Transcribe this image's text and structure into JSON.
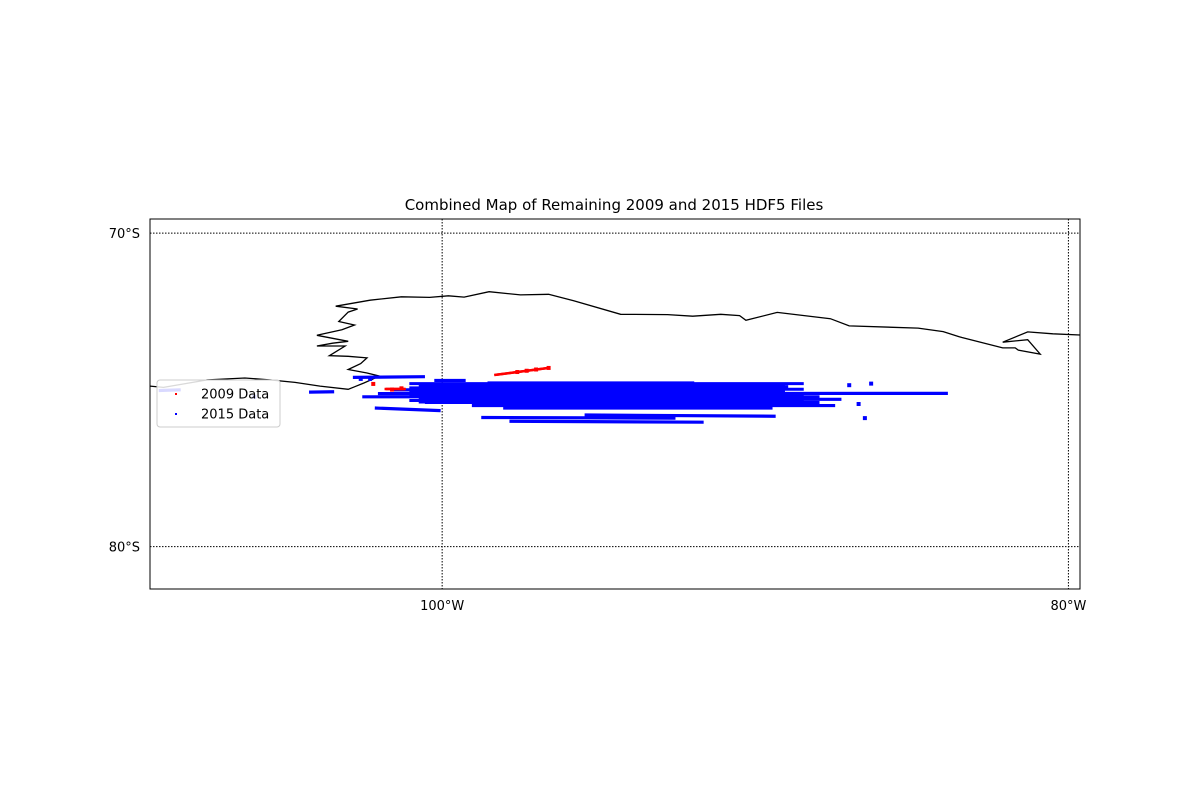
{
  "chart_data": {
    "type": "scatter",
    "title": "Combined Map of Remaining 2009 and 2015 HDF5 Files",
    "projection": "map",
    "xlim": [
      -109.33,
      -79.63
    ],
    "ylim": [
      -81.35,
      -69.55
    ],
    "grid": true,
    "x_ticks": [
      {
        "value": -100,
        "label": "100°W"
      },
      {
        "value": -80,
        "label": "80°W"
      }
    ],
    "y_ticks": [
      {
        "value": -70,
        "label": "70°S"
      },
      {
        "value": -80,
        "label": "80°S"
      }
    ],
    "legend_position": "left",
    "series": [
      {
        "name": "2009 Data",
        "color": "#ff0000",
        "points": [
          {
            "lon": -102.2,
            "lat": -74.81
          },
          {
            "lon": -101.3,
            "lat": -74.95
          },
          {
            "lon": -101.6,
            "lat": -74.99
          },
          {
            "lon": -97.6,
            "lat": -74.43
          },
          {
            "lon": -97.3,
            "lat": -74.39
          },
          {
            "lon": -97.0,
            "lat": -74.35
          },
          {
            "lon": -96.6,
            "lat": -74.3
          }
        ],
        "tracks": [
          {
            "from": [
              -98.3,
              -74.52
            ],
            "to": [
              -96.6,
              -74.3
            ]
          },
          {
            "from": [
              -101.8,
              -74.97
            ],
            "to": [
              -101.2,
              -74.97
            ]
          }
        ]
      },
      {
        "name": "2015 Data",
        "color": "#0000ff",
        "tracks": [
          {
            "from": [
              -102.0,
              -75.12
            ],
            "to": [
              -83.9,
              -75.11
            ]
          },
          {
            "from": [
              -102.5,
              -75.22
            ],
            "to": [
              -88.0,
              -75.22
            ]
          },
          {
            "from": [
              -101.5,
              -75.0
            ],
            "to": [
              -89.5,
              -75.0
            ]
          },
          {
            "from": [
              -100.6,
              -74.9
            ],
            "to": [
              -89.0,
              -74.9
            ]
          },
          {
            "from": [
              -98.5,
              -74.78
            ],
            "to": [
              -92.0,
              -74.78
            ]
          },
          {
            "from": [
              -99.7,
              -75.3
            ],
            "to": [
              -87.3,
              -75.3
            ]
          },
          {
            "from": [
              -100.5,
              -75.4
            ],
            "to": [
              -88.0,
              -75.4
            ]
          },
          {
            "from": [
              -99.0,
              -75.5
            ],
            "to": [
              -87.5,
              -75.5
            ]
          },
          {
            "from": [
              -98.0,
              -75.58
            ],
            "to": [
              -89.5,
              -75.58
            ]
          },
          {
            "from": [
              -102.1,
              -75.58
            ],
            "to": [
              -100.1,
              -75.66
            ]
          },
          {
            "from": [
              -98.7,
              -75.88
            ],
            "to": [
              -92.6,
              -75.9
            ]
          },
          {
            "from": [
              -97.8,
              -76.0
            ],
            "to": [
              -91.7,
              -76.03
            ]
          },
          {
            "from": [
              -95.4,
              -75.8
            ],
            "to": [
              -89.4,
              -75.84
            ]
          },
          {
            "from": [
              -104.2,
              -75.07
            ],
            "to": [
              -103.5,
              -75.06
            ]
          },
          {
            "from": [
              -109.0,
              -75.02
            ],
            "to": [
              -108.4,
              -75.0
            ]
          },
          {
            "from": [
              -102.8,
              -74.6
            ],
            "to": [
              -100.6,
              -74.58
            ]
          },
          {
            "from": [
              -100.2,
              -74.7
            ],
            "to": [
              -99.3,
              -74.7
            ]
          }
        ],
        "points": [
          {
            "lon": -102.6,
            "lat": -74.65
          },
          {
            "lon": -102.3,
            "lat": -74.65
          },
          {
            "lon": -106.0,
            "lat": -75.22
          },
          {
            "lon": -87.0,
            "lat": -74.85
          },
          {
            "lon": -86.3,
            "lat": -74.8
          },
          {
            "lon": -86.7,
            "lat": -75.45
          },
          {
            "lon": -86.5,
            "lat": -75.9
          }
        ]
      }
    ],
    "coastline": [
      [
        -109.33,
        -74.88
      ],
      [
        -108.9,
        -74.92
      ],
      [
        -108.2,
        -74.8
      ],
      [
        -107.5,
        -74.68
      ],
      [
        -106.3,
        -74.62
      ],
      [
        -105.5,
        -74.68
      ],
      [
        -104.7,
        -74.76
      ],
      [
        -103.9,
        -74.88
      ],
      [
        -103.0,
        -74.98
      ],
      [
        -102.8,
        -74.9
      ],
      [
        -102.5,
        -74.78
      ],
      [
        -102.0,
        -74.56
      ],
      [
        -102.4,
        -74.46
      ],
      [
        -103.0,
        -74.35
      ],
      [
        -102.6,
        -74.16
      ],
      [
        -102.4,
        -73.98
      ],
      [
        -103.0,
        -73.93
      ],
      [
        -103.6,
        -73.91
      ],
      [
        -103.1,
        -73.6
      ],
      [
        -104.0,
        -73.6
      ],
      [
        -103.5,
        -73.51
      ],
      [
        -103.0,
        -73.45
      ],
      [
        -104.0,
        -73.26
      ],
      [
        -103.2,
        -73.08
      ],
      [
        -102.8,
        -72.93
      ],
      [
        -103.3,
        -72.82
      ],
      [
        -103.0,
        -72.52
      ],
      [
        -102.7,
        -72.42
      ],
      [
        -103.4,
        -72.33
      ],
      [
        -102.3,
        -72.14
      ],
      [
        -101.3,
        -72.03
      ],
      [
        -100.4,
        -72.05
      ],
      [
        -99.8,
        -72.0
      ],
      [
        -99.3,
        -72.04
      ],
      [
        -98.5,
        -71.87
      ],
      [
        -97.5,
        -71.97
      ],
      [
        -96.6,
        -71.95
      ],
      [
        -95.8,
        -72.16
      ],
      [
        -94.3,
        -72.59
      ],
      [
        -92.8,
        -72.6
      ],
      [
        -92.0,
        -72.65
      ],
      [
        -91.1,
        -72.59
      ],
      [
        -90.5,
        -72.63
      ],
      [
        -90.3,
        -72.78
      ],
      [
        -89.3,
        -72.53
      ],
      [
        -87.6,
        -72.73
      ],
      [
        -87.0,
        -72.96
      ],
      [
        -84.8,
        -73.03
      ],
      [
        -84.0,
        -73.14
      ],
      [
        -83.5,
        -73.3
      ],
      [
        -83.4,
        -73.33
      ],
      [
        -82.1,
        -73.66
      ],
      [
        -81.7,
        -73.66
      ],
      [
        -81.6,
        -73.73
      ],
      [
        -80.9,
        -73.86
      ],
      [
        -81.3,
        -73.4
      ],
      [
        -82.1,
        -73.48
      ],
      [
        -81.3,
        -73.15
      ],
      [
        -80.5,
        -73.21
      ],
      [
        -79.63,
        -73.25
      ]
    ]
  }
}
